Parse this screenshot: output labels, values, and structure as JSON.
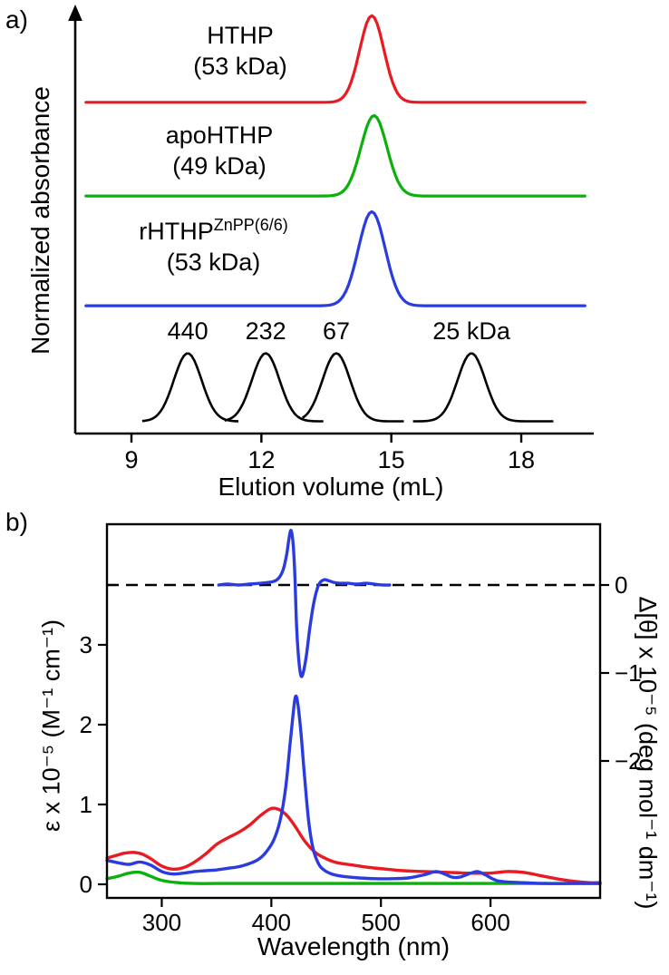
{
  "figure": {
    "background": "#ffffff"
  },
  "chart_data": [
    {
      "panel": "a",
      "letter": "a)",
      "type": "line",
      "xlabel": "Elution volume (mL)",
      "ylabel": "Normalized absorbance",
      "xlim": [
        7.7,
        19.6
      ],
      "xticks": [
        9,
        12,
        15,
        18
      ],
      "traces": [
        {
          "label_base": "HTHP",
          "label_sup": "",
          "label_mass": "(53 kDa)",
          "color": "#e81b22",
          "baseline": 0.785,
          "center": 14.55,
          "height": 0.21,
          "sigma": 0.28,
          "x_start": 7.95,
          "x_end": 19.5
        },
        {
          "label_base": "apoHTHP",
          "label_sup": "",
          "label_mass": "(49 kDa)",
          "color": "#0cb00c",
          "baseline": 0.558,
          "center": 14.6,
          "height": 0.195,
          "sigma": 0.3,
          "x_start": 7.95,
          "x_end": 19.5
        },
        {
          "label_base": "rHTHP",
          "label_sup": "ZnPP(6/6)",
          "label_mass": "(53 kDa)",
          "color": "#2a3be0",
          "baseline": 0.292,
          "center": 14.55,
          "height": 0.228,
          "sigma": 0.31,
          "x_start": 7.95,
          "x_end": 19.5
        }
      ],
      "standards": {
        "color": "#000000",
        "baseline": 0.012,
        "height": 0.165,
        "sigma": 0.32,
        "peaks": [
          {
            "label": "440",
            "center": 10.3,
            "from": 9.25,
            "to": 11.5
          },
          {
            "label": "232",
            "center": 12.1,
            "from": 11.15,
            "to": 13.45
          },
          {
            "label": "67",
            "center": 13.73,
            "from": 12.95,
            "to": 15.3
          },
          {
            "label": "25 kDa",
            "center": 16.85,
            "from": 15.5,
            "to": 18.75
          }
        ]
      }
    },
    {
      "panel": "b",
      "letter": "b)",
      "type": "line",
      "xlabel": "Wavelength (nm)",
      "ylabel_left": "ε x 10⁻⁵ (M⁻¹ cm⁻¹)",
      "ylabel_right": "Δ[θ] x 10⁻⁵ (deg mol⁻¹ dm⁻¹)",
      "xlim": [
        250,
        700
      ],
      "xticks": [
        300,
        400,
        500,
        600
      ],
      "ylim_left": [
        -0.17,
        4.5
      ],
      "yticks_left": [
        0,
        1,
        2,
        3
      ],
      "ylim_right": [
        -3.56,
        0.69
      ],
      "yticks_right": [
        0,
        -1,
        -2
      ],
      "zero_line": {
        "axis": "right",
        "value": 0,
        "style": "dashed",
        "color": "#000000"
      },
      "series": [
        {
          "name": "absorption-green",
          "axis": "left",
          "color": "#0cb00c",
          "x": [
            250,
            260,
            270,
            280,
            290,
            300,
            315,
            330,
            350,
            400,
            450,
            500,
            550,
            600,
            650,
            700
          ],
          "y": [
            0.07,
            0.1,
            0.14,
            0.15,
            0.1,
            0.05,
            0.02,
            0.01,
            0.01,
            0.01,
            0.01,
            0.01,
            0.01,
            0.01,
            0.01,
            0.01
          ]
        },
        {
          "name": "absorption-red",
          "axis": "left",
          "color": "#e81b22",
          "x": [
            250,
            258,
            266,
            274,
            282,
            290,
            300,
            310,
            320,
            330,
            340,
            350,
            360,
            370,
            380,
            390,
            400,
            408,
            415,
            422,
            430,
            440,
            450,
            460,
            475,
            490,
            505,
            520,
            540,
            560,
            580,
            600,
            615,
            630,
            645,
            660,
            675,
            690,
            700
          ],
          "y": [
            0.33,
            0.36,
            0.39,
            0.4,
            0.38,
            0.32,
            0.23,
            0.19,
            0.21,
            0.28,
            0.38,
            0.5,
            0.58,
            0.65,
            0.74,
            0.86,
            0.95,
            0.93,
            0.85,
            0.72,
            0.55,
            0.4,
            0.32,
            0.27,
            0.24,
            0.21,
            0.19,
            0.17,
            0.16,
            0.15,
            0.14,
            0.14,
            0.16,
            0.15,
            0.11,
            0.07,
            0.04,
            0.02,
            0.02
          ]
        },
        {
          "name": "absorption-blue",
          "axis": "left",
          "color": "#2a3be0",
          "x": [
            250,
            260,
            270,
            280,
            290,
            300,
            310,
            320,
            330,
            340,
            350,
            360,
            370,
            380,
            388,
            395,
            402,
            408,
            413,
            417,
            420,
            422,
            424,
            427,
            430,
            434,
            438,
            443,
            448,
            455,
            465,
            480,
            495,
            510,
            525,
            540,
            550,
            558,
            565,
            572,
            580,
            588,
            595,
            605,
            615,
            630,
            650,
            675,
            700
          ],
          "y": [
            0.3,
            0.27,
            0.25,
            0.28,
            0.24,
            0.16,
            0.13,
            0.14,
            0.16,
            0.17,
            0.18,
            0.2,
            0.22,
            0.26,
            0.31,
            0.4,
            0.55,
            0.8,
            1.2,
            1.75,
            2.15,
            2.35,
            2.28,
            1.9,
            1.4,
            0.8,
            0.45,
            0.26,
            0.18,
            0.13,
            0.1,
            0.08,
            0.07,
            0.07,
            0.08,
            0.12,
            0.16,
            0.13,
            0.09,
            0.09,
            0.13,
            0.16,
            0.12,
            0.05,
            0.03,
            0.02,
            0.01,
            0.01,
            0.01
          ]
        },
        {
          "name": "cd-blue",
          "axis": "right",
          "color": "#2a3be0",
          "x": [
            352,
            360,
            370,
            380,
            390,
            398,
            404,
            408,
            411,
            414,
            416,
            418,
            420,
            421.5,
            423,
            425,
            427,
            429,
            432,
            435,
            438,
            441,
            444,
            448,
            452,
            457,
            463,
            470,
            478,
            486,
            494,
            502,
            508
          ],
          "y": [
            0.0,
            0.01,
            0.0,
            0.01,
            0.02,
            0.03,
            0.05,
            0.1,
            0.18,
            0.35,
            0.52,
            0.62,
            0.45,
            0.1,
            -0.45,
            -0.85,
            -1.03,
            -1.0,
            -0.8,
            -0.5,
            -0.25,
            -0.08,
            0.02,
            0.06,
            0.05,
            0.03,
            0.02,
            0.02,
            0.01,
            0.02,
            0.01,
            0.0,
            0.0
          ]
        }
      ]
    }
  ]
}
